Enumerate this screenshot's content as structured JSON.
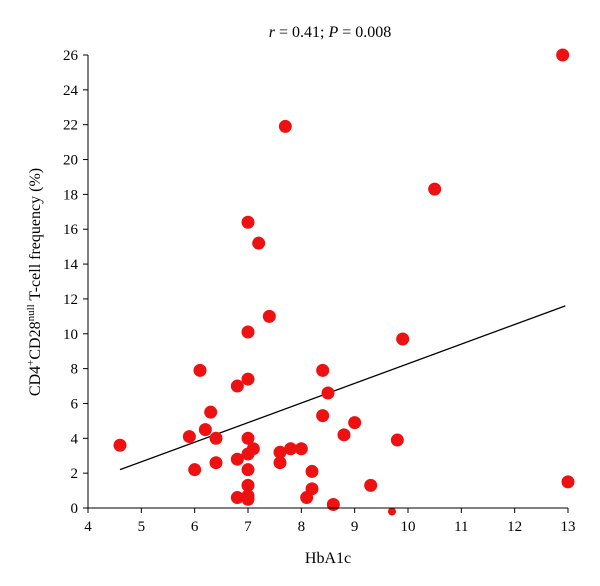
{
  "chart_data": {
    "type": "scatter",
    "title_parts": {
      "r_symbol": "r",
      "r_value": " = 0.41; ",
      "p_symbol": "P",
      "p_value": " = 0.008"
    },
    "xlabel": "HbA1c",
    "ylabel_parts": {
      "a": "CD4",
      "a_sup": "+",
      "b": "CD28",
      "b_sup": "null",
      "c": " T-cell frequency (%)"
    },
    "xlim": [
      4,
      13
    ],
    "ylim": [
      0,
      26
    ],
    "x_ticks": [
      4,
      5,
      6,
      7,
      8,
      9,
      10,
      11,
      12,
      13
    ],
    "y_ticks": [
      0,
      2,
      4,
      6,
      8,
      10,
      12,
      14,
      16,
      18,
      20,
      22,
      24,
      26
    ],
    "marker_color": "#ee1111",
    "trendline": {
      "x": [
        4.6,
        12.95
      ],
      "y": [
        2.2,
        11.6
      ]
    },
    "points": [
      {
        "x": 4.6,
        "y": 3.6
      },
      {
        "x": 5.9,
        "y": 4.1
      },
      {
        "x": 6.0,
        "y": 2.2
      },
      {
        "x": 6.1,
        "y": 7.9
      },
      {
        "x": 6.2,
        "y": 4.5
      },
      {
        "x": 6.3,
        "y": 5.5
      },
      {
        "x": 6.4,
        "y": 4.0
      },
      {
        "x": 6.4,
        "y": 2.6
      },
      {
        "x": 6.8,
        "y": 7.0
      },
      {
        "x": 6.8,
        "y": 2.8
      },
      {
        "x": 6.8,
        "y": 0.6
      },
      {
        "x": 7.0,
        "y": 16.4
      },
      {
        "x": 7.0,
        "y": 10.1
      },
      {
        "x": 7.0,
        "y": 7.4
      },
      {
        "x": 7.0,
        "y": 4.0
      },
      {
        "x": 7.0,
        "y": 3.1
      },
      {
        "x": 7.0,
        "y": 2.2
      },
      {
        "x": 7.0,
        "y": 1.3
      },
      {
        "x": 7.0,
        "y": 0.7
      },
      {
        "x": 7.0,
        "y": 0.5
      },
      {
        "x": 7.1,
        "y": 3.4
      },
      {
        "x": 7.2,
        "y": 15.2
      },
      {
        "x": 7.4,
        "y": 11.0
      },
      {
        "x": 7.6,
        "y": 3.2
      },
      {
        "x": 7.6,
        "y": 2.6
      },
      {
        "x": 7.7,
        "y": 21.9
      },
      {
        "x": 7.8,
        "y": 3.4
      },
      {
        "x": 8.0,
        "y": 3.4
      },
      {
        "x": 8.1,
        "y": 0.6
      },
      {
        "x": 8.2,
        "y": 2.1
      },
      {
        "x": 8.2,
        "y": 1.1
      },
      {
        "x": 8.4,
        "y": 7.9
      },
      {
        "x": 8.4,
        "y": 5.3
      },
      {
        "x": 8.5,
        "y": 6.6
      },
      {
        "x": 8.6,
        "y": 0.2
      },
      {
        "x": 8.8,
        "y": 4.2
      },
      {
        "x": 9.0,
        "y": 4.9
      },
      {
        "x": 9.3,
        "y": 1.3
      },
      {
        "x": 9.7,
        "y": -0.2
      },
      {
        "x": 9.8,
        "y": 3.9
      },
      {
        "x": 9.9,
        "y": 9.7
      },
      {
        "x": 10.5,
        "y": 18.3
      },
      {
        "x": 12.9,
        "y": 26.0
      },
      {
        "x": 13.0,
        "y": 1.5
      }
    ]
  }
}
